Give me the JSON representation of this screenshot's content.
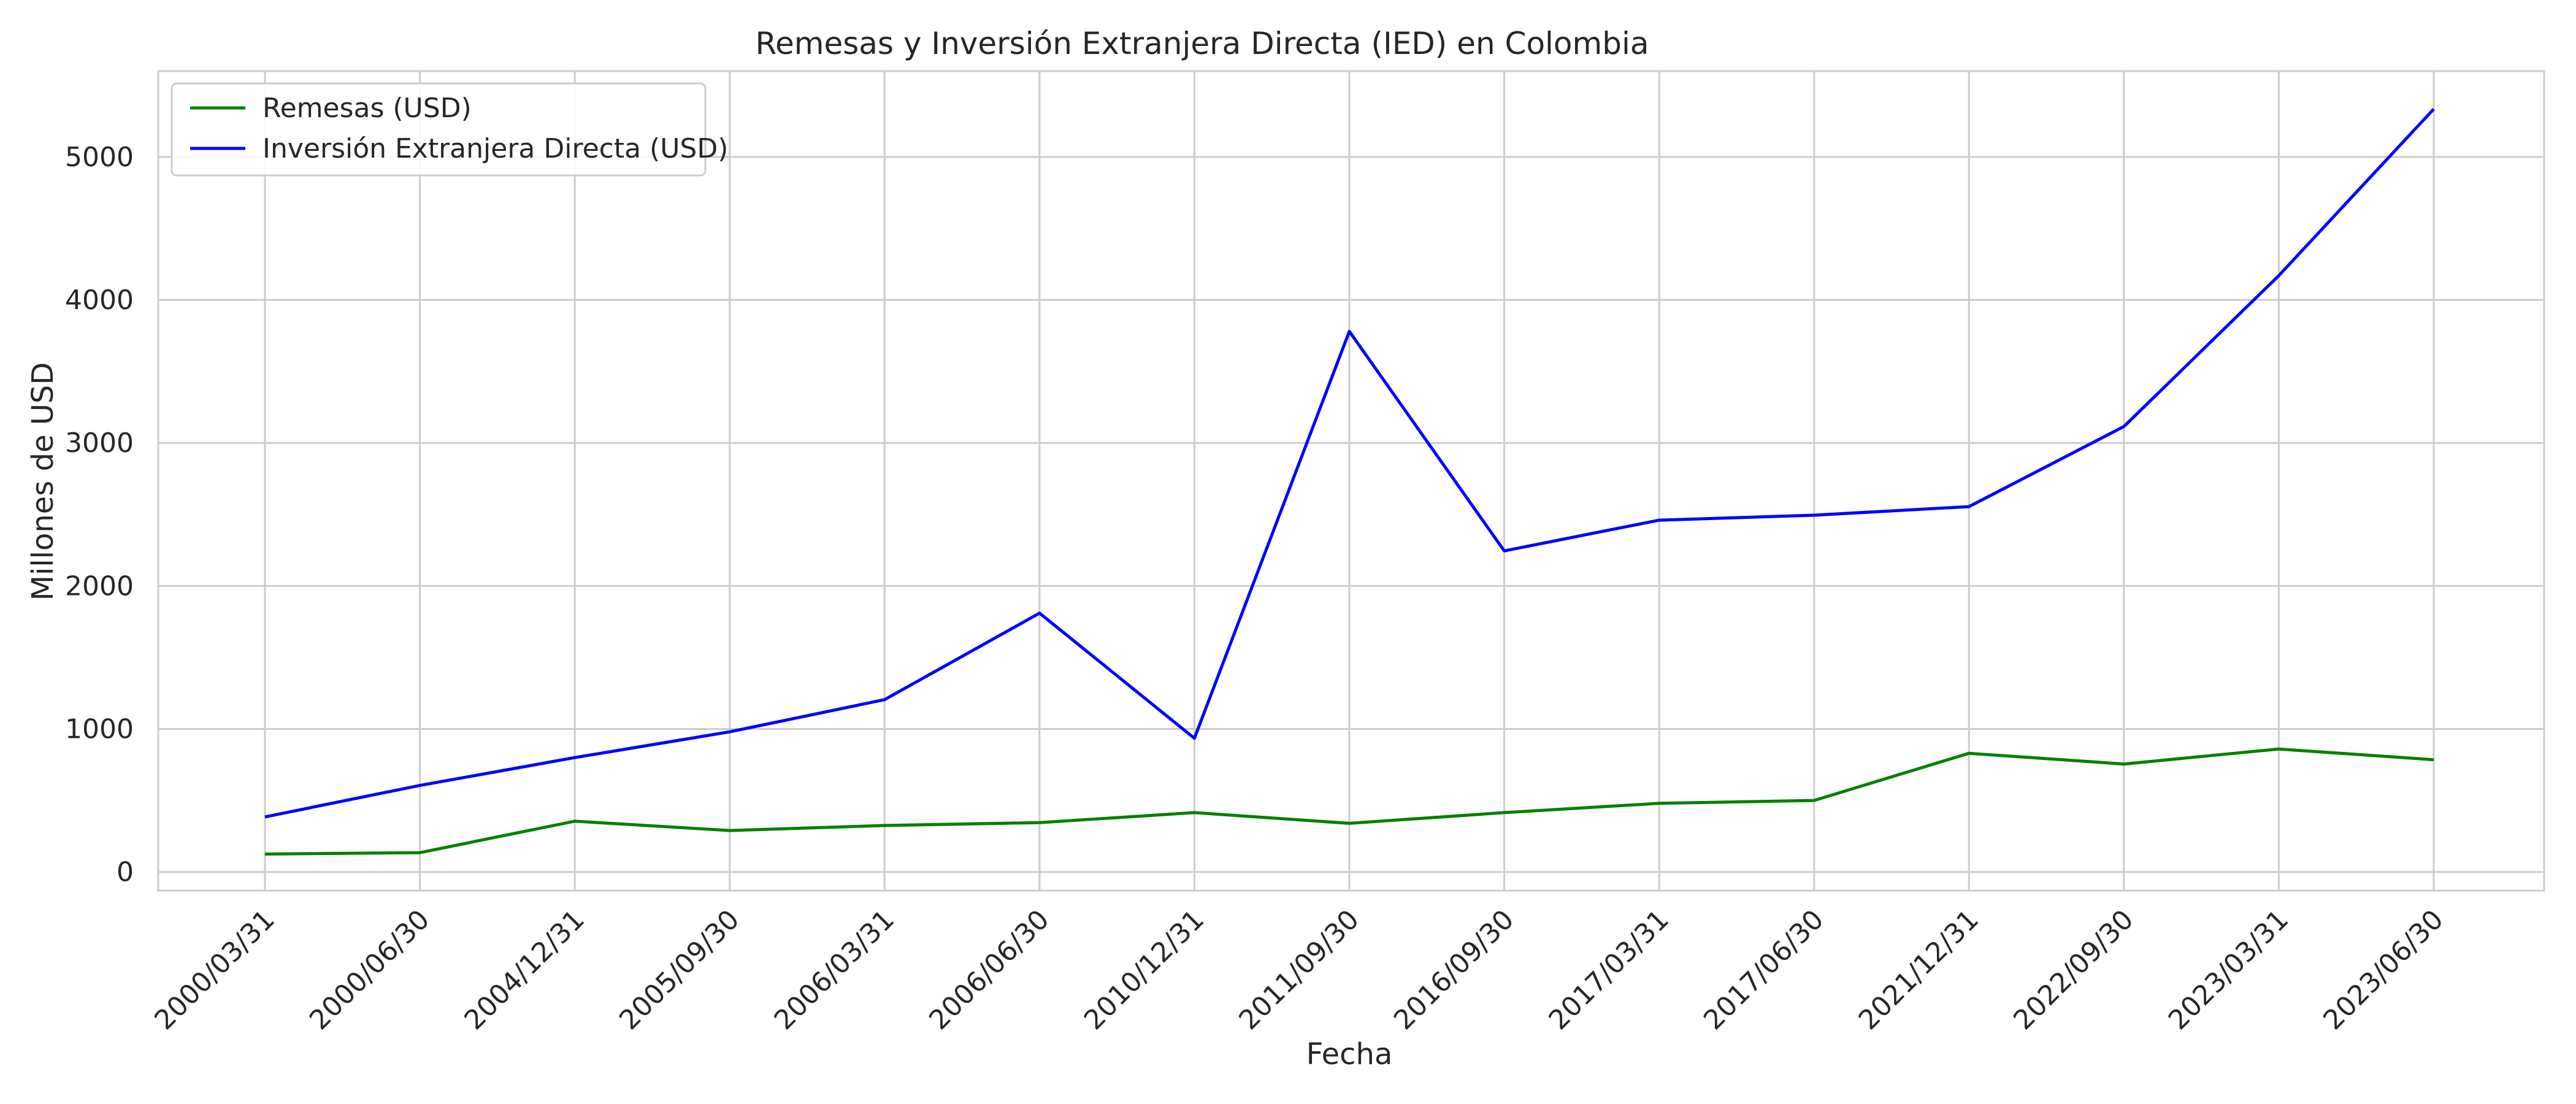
{
  "chart_data": {
    "type": "line",
    "title": "Remesas y Inversión Extranjera Directa (IED) en Colombia",
    "xlabel": "Fecha",
    "ylabel": "Millones de USD",
    "categories": [
      "2000/03/31",
      "2000/06/30",
      "2004/12/31",
      "2005/09/30",
      "2006/03/31",
      "2006/06/30",
      "2010/12/31",
      "2011/09/30",
      "2016/09/30",
      "2017/03/31",
      "2017/06/30",
      "2021/12/31",
      "2022/09/30",
      "2023/03/31",
      "2023/06/30"
    ],
    "ylim": [
      -130,
      5600
    ],
    "yticks": [
      0,
      1000,
      2000,
      3000,
      4000,
      5000
    ],
    "grid": true,
    "legend_position": "top-left",
    "series": [
      {
        "name": "Remesas (USD)",
        "color": "#008000",
        "values": [
          125,
          135,
          355,
          290,
          325,
          345,
          415,
          340,
          415,
          480,
          500,
          830,
          755,
          860,
          785
        ]
      },
      {
        "name": "Inversión Extranjera Directa (USD)",
        "color": "#0000ff",
        "values": [
          385,
          605,
          800,
          980,
          1205,
          1810,
          935,
          3780,
          2245,
          2460,
          2495,
          2555,
          3115,
          4170,
          5335
        ]
      }
    ]
  }
}
